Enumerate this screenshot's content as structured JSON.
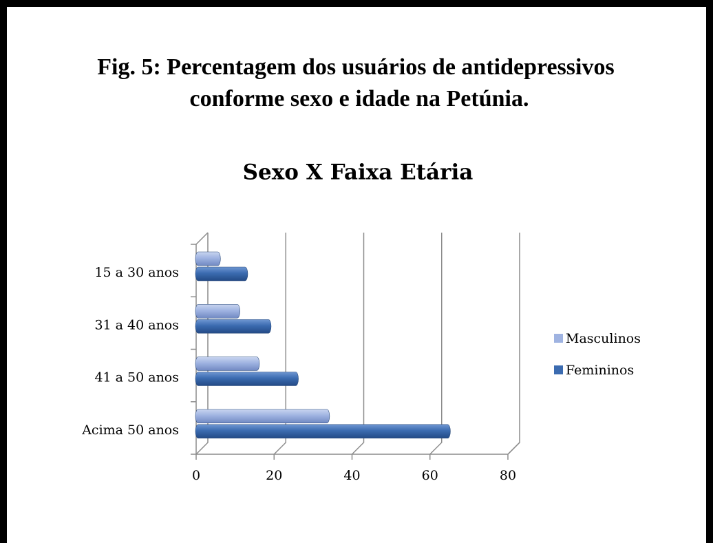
{
  "figure_caption": [
    "Fig. 5: Percentagem dos usuários de antidepressivos",
    "conforme sexo e idade na Petúnia."
  ],
  "chart_data": {
    "type": "bar",
    "orientation": "horizontal",
    "title": "Sexo X Faixa Etária",
    "categories": [
      "15 a 30 anos",
      "31 a 40 anos",
      "41 a 50 anos",
      "Acima 50 anos"
    ],
    "series": [
      {
        "name": "Masculinos",
        "color": "#9fb3e1",
        "values": [
          5,
          10,
          15,
          33
        ]
      },
      {
        "name": "Femininos",
        "color": "#3b6bb0",
        "values": [
          12,
          18,
          25,
          64
        ]
      }
    ],
    "xlim": [
      0,
      80
    ],
    "xticks": [
      0,
      20,
      40,
      60,
      80
    ],
    "grid": true,
    "legend": "right"
  }
}
